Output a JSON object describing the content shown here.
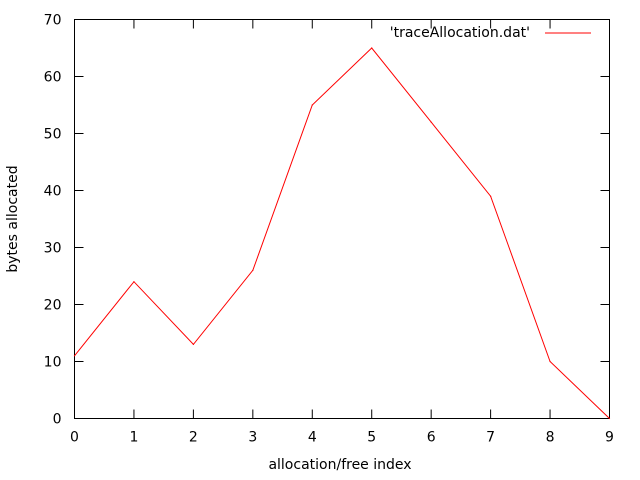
{
  "chart_data": {
    "type": "line",
    "title": "",
    "xlabel": "allocation/free index",
    "ylabel": "bytes allocated",
    "xlim": [
      0,
      9
    ],
    "ylim": [
      0,
      70
    ],
    "xticks": [
      0,
      1,
      2,
      3,
      4,
      5,
      6,
      7,
      8,
      9
    ],
    "yticks": [
      0,
      10,
      20,
      30,
      40,
      50,
      60,
      70
    ],
    "grid": false,
    "legend_position": "top-right",
    "series": [
      {
        "name": "'traceAllocation.dat'",
        "color": "#ff0000",
        "x": [
          0,
          1,
          2,
          3,
          4,
          5,
          6,
          7,
          8,
          9
        ],
        "y": [
          11,
          24,
          13,
          26,
          55,
          65,
          52,
          39,
          10,
          0
        ]
      }
    ]
  }
}
